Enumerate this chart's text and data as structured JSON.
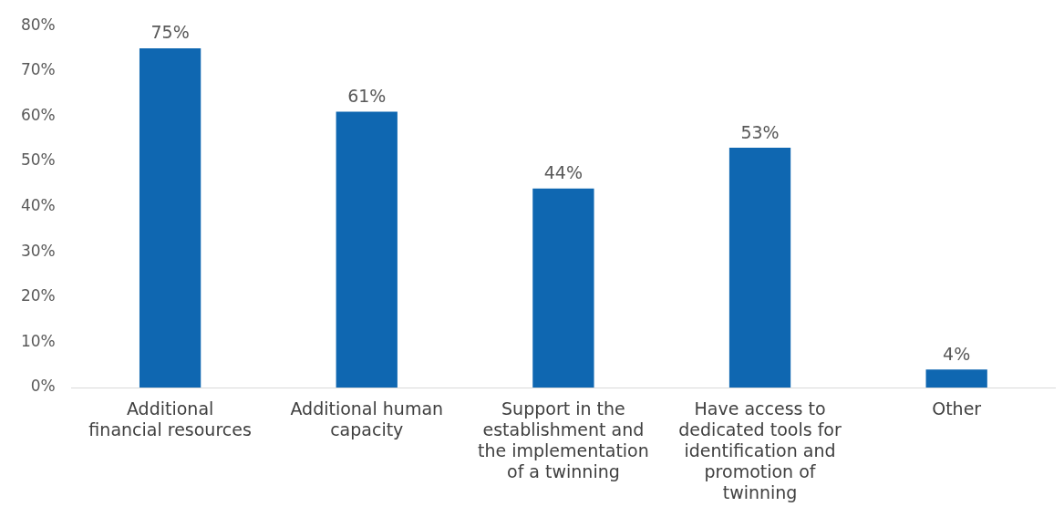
{
  "chart_data": {
    "type": "bar",
    "categories": [
      "Additional financial resources",
      "Additional human capacity",
      "Support in the establishment and the implementation of a twinning",
      "Have access to dedicated tools for identification and promotion of twinning",
      "Other"
    ],
    "values": [
      75,
      61,
      44,
      53,
      4
    ],
    "color": "#0f67b1",
    "ylim": [
      0,
      80
    ],
    "yticks": [
      {
        "value": 0,
        "label": "0%"
      },
      {
        "value": 10,
        "label": "10%"
      },
      {
        "value": 20,
        "label": "20%"
      },
      {
        "value": 30,
        "label": "30%"
      },
      {
        "value": 40,
        "label": "40%"
      },
      {
        "value": 50,
        "label": "50%"
      },
      {
        "value": 60,
        "label": "60%"
      },
      {
        "value": 70,
        "label": "70%"
      },
      {
        "value": 80,
        "label": "80%"
      }
    ],
    "value_labels": [
      "75%",
      "61%",
      "44%",
      "53%",
      "4%"
    ],
    "grid": false,
    "legend": false
  }
}
